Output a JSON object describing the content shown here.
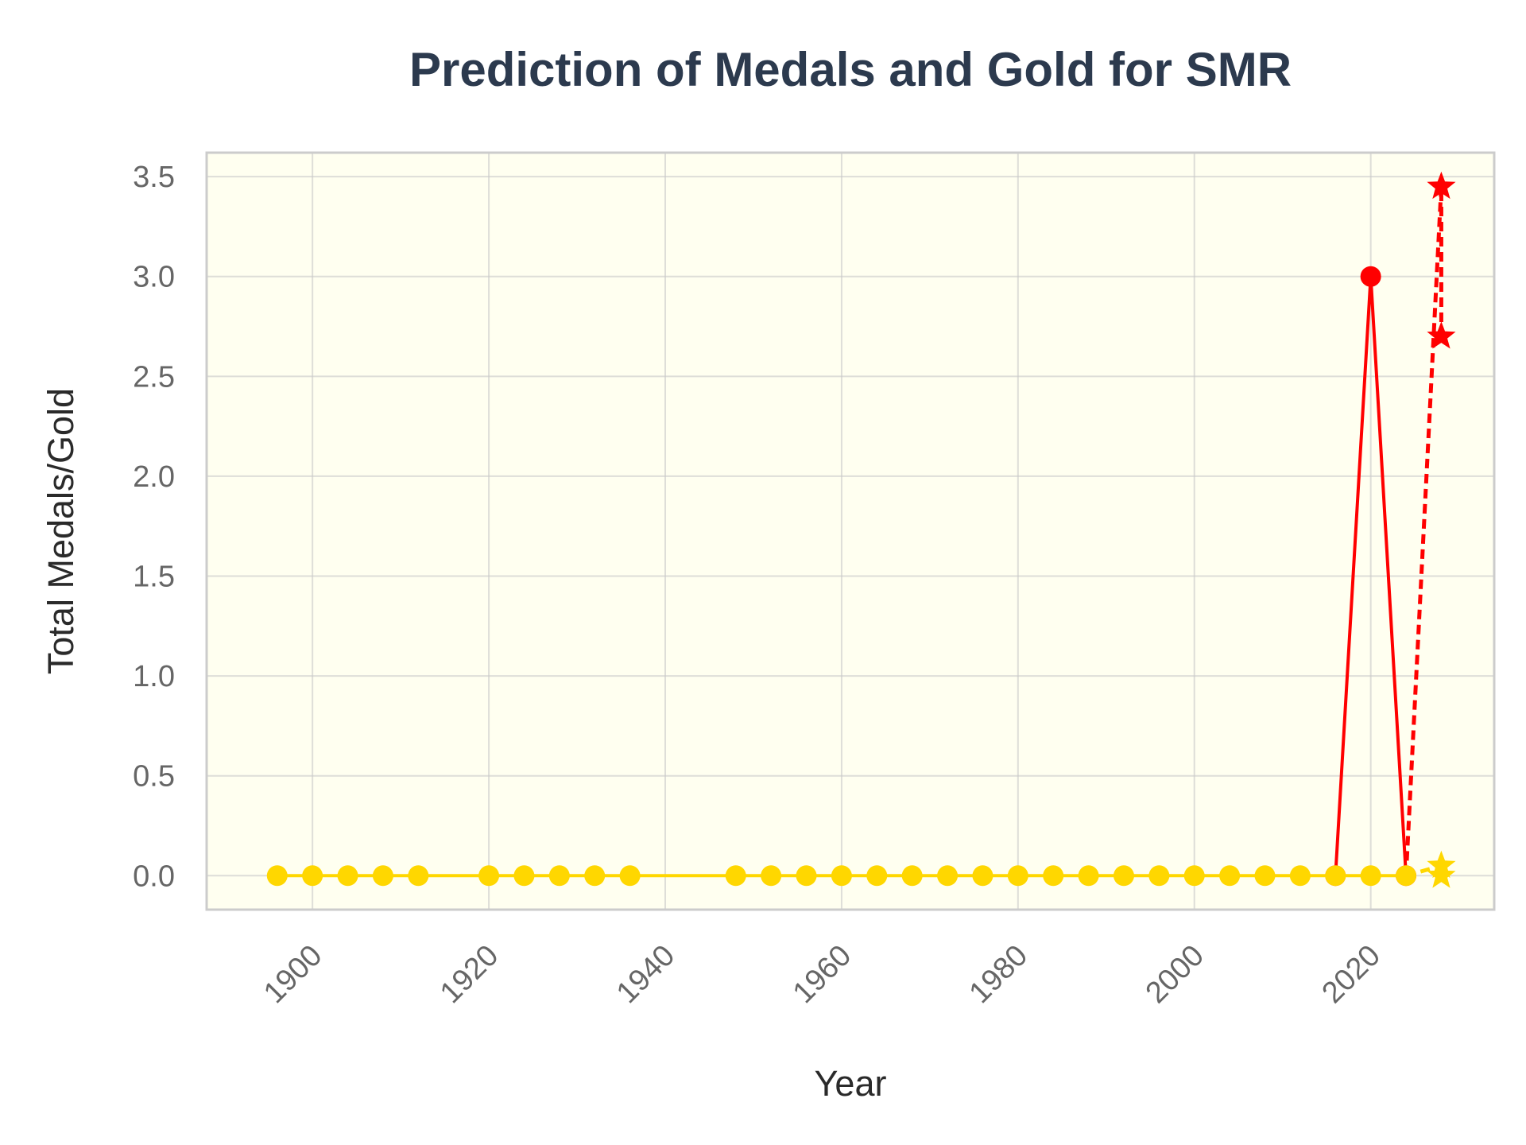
{
  "chart_data": {
    "type": "line",
    "title": "Prediction of Medals and Gold for SMR",
    "xlabel": "Year",
    "ylabel": "Total Medals/Gold",
    "xlim": [
      1888,
      2034
    ],
    "ylim": [
      -0.17,
      3.62
    ],
    "xticks": [
      1900,
      1920,
      1940,
      1960,
      1980,
      2000,
      2020
    ],
    "yticks": [
      0.0,
      0.5,
      1.0,
      1.5,
      2.0,
      2.5,
      3.0,
      3.5
    ],
    "grid": true,
    "background_color": "#fffff0",
    "series": [
      {
        "color": "#ff0000",
        "marker": "circle",
        "line": "solid",
        "x": [
          2016,
          2020,
          2024
        ],
        "y": [
          0,
          3,
          0
        ]
      },
      {
        "color": "#ffd700",
        "marker": "circle",
        "line": "solid",
        "x": [
          1896,
          1900,
          1904,
          1908,
          1912,
          1920,
          1924,
          1928,
          1932,
          1936,
          1948,
          1952,
          1956,
          1960,
          1964,
          1968,
          1972,
          1976,
          1980,
          1984,
          1988,
          1992,
          1996,
          2000,
          2004,
          2008,
          2012,
          2016,
          2020,
          2024
        ],
        "y": [
          0,
          0,
          0,
          0,
          0,
          0,
          0,
          0,
          0,
          0,
          0,
          0,
          0,
          0,
          0,
          0,
          0,
          0,
          0,
          0,
          0,
          0,
          0,
          0,
          0,
          0,
          0,
          0,
          0,
          0
        ]
      }
    ],
    "predictions": [
      {
        "color": "#ff0000",
        "marker": "star",
        "line": "dashed",
        "x": [
          2024,
          2028,
          2028
        ],
        "y": [
          0,
          3.45,
          2.7
        ]
      },
      {
        "color": "#ffd700",
        "marker": "star",
        "line": "dashed",
        "x": [
          2024,
          2028,
          2028
        ],
        "y": [
          0,
          0.05,
          0
        ]
      }
    ]
  }
}
